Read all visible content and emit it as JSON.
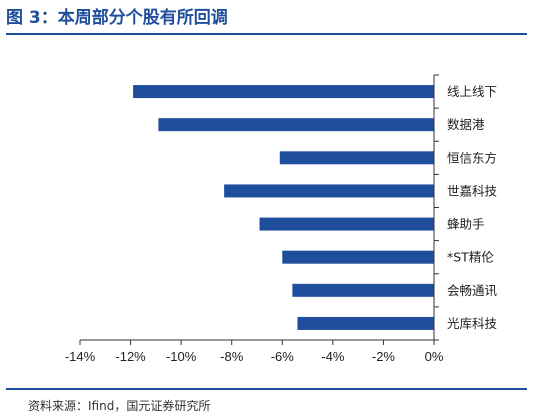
{
  "figure": {
    "title": "图 3：本周部分个股有所回调",
    "source": "资料来源：Ifind，国元证券研究所"
  },
  "colors": {
    "accent": "#1f4e9c",
    "bar": "#1f4e9c",
    "axis": "#333333"
  },
  "chart_data": {
    "type": "bar",
    "orientation": "horizontal",
    "title": "",
    "xlabel": "",
    "ylabel": "",
    "categories": [
      "线上线下",
      "数据港",
      "恒信东方",
      "世嘉科技",
      "蜂助手",
      "*ST精伦",
      "会畅通讯",
      "光库科技"
    ],
    "values": [
      -11.9,
      -10.9,
      -6.1,
      -8.3,
      -6.9,
      -6.0,
      -5.6,
      -5.4
    ],
    "xlim": [
      -14,
      0
    ],
    "xticks": [
      -14,
      -12,
      -10,
      -8,
      -6,
      -4,
      -2,
      0
    ],
    "xtick_labels": [
      "-14%",
      "-12%",
      "-10%",
      "-8%",
      "-6%",
      "-4%",
      "-2%",
      "0%"
    ],
    "grid": false,
    "legend": "none"
  }
}
